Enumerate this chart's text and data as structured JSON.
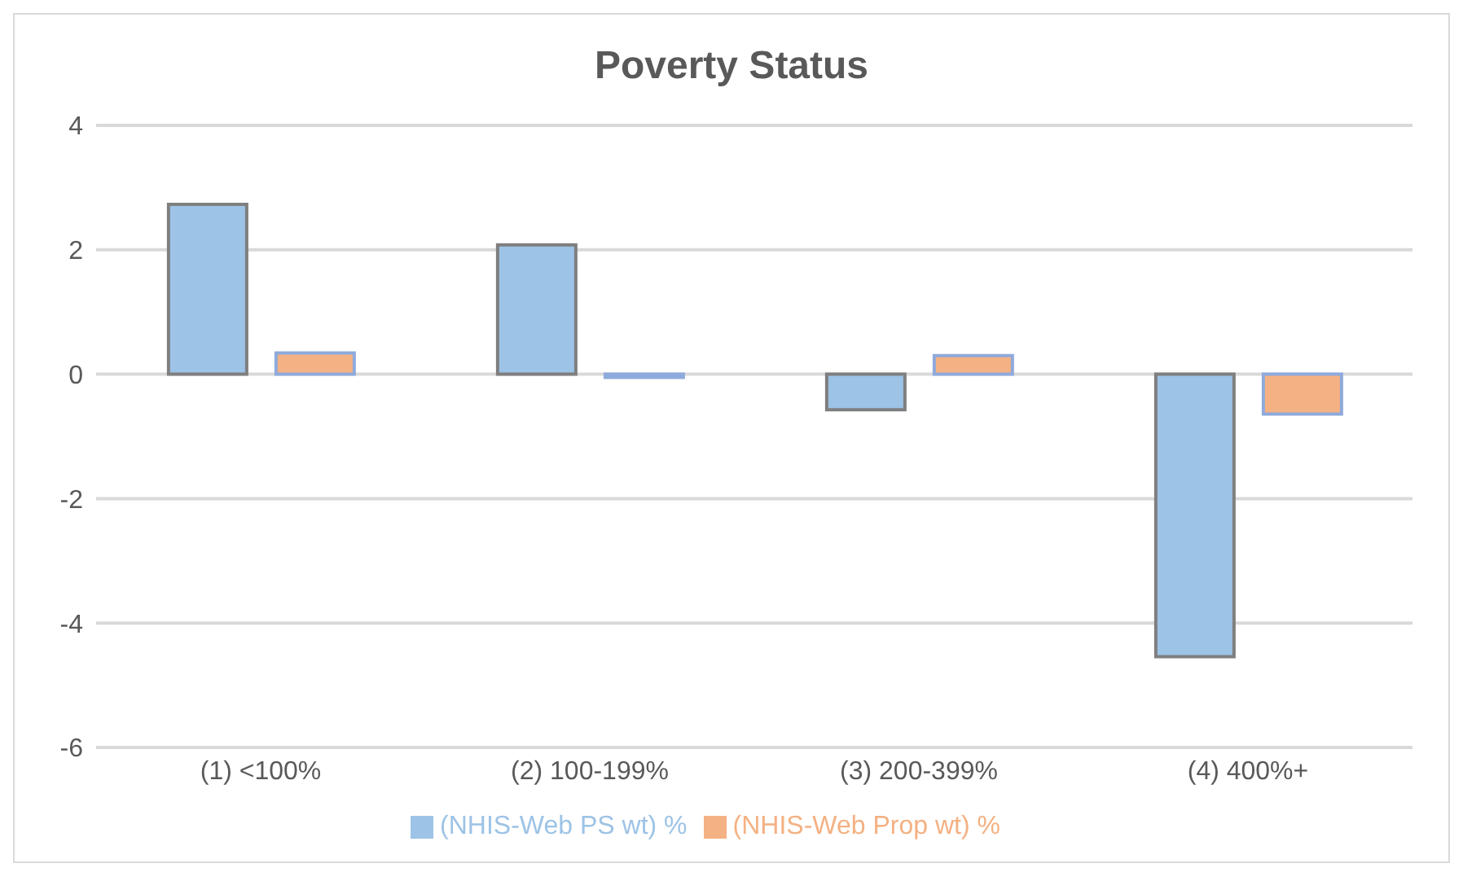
{
  "chart_data": {
    "type": "bar",
    "title": "Poverty Status",
    "categories": [
      "(1) <100%",
      "(2) 100-199%",
      "(3) 200-399%",
      "(4) 400%+"
    ],
    "series": [
      {
        "name": "(NHIS-Web PS wt) %",
        "color": "#9dc3e6",
        "values": [
          2.73,
          2.08,
          -0.57,
          -4.54
        ]
      },
      {
        "name": "(NHIS-Web Prop wt) %",
        "color": "#f4b183",
        "values": [
          0.34,
          -0.05,
          0.3,
          -0.64
        ]
      }
    ],
    "ylim": [
      -6,
      4
    ],
    "yticks": [
      -6,
      -4,
      -2,
      0,
      2,
      4
    ],
    "grid": "y",
    "legend": "bottom"
  }
}
